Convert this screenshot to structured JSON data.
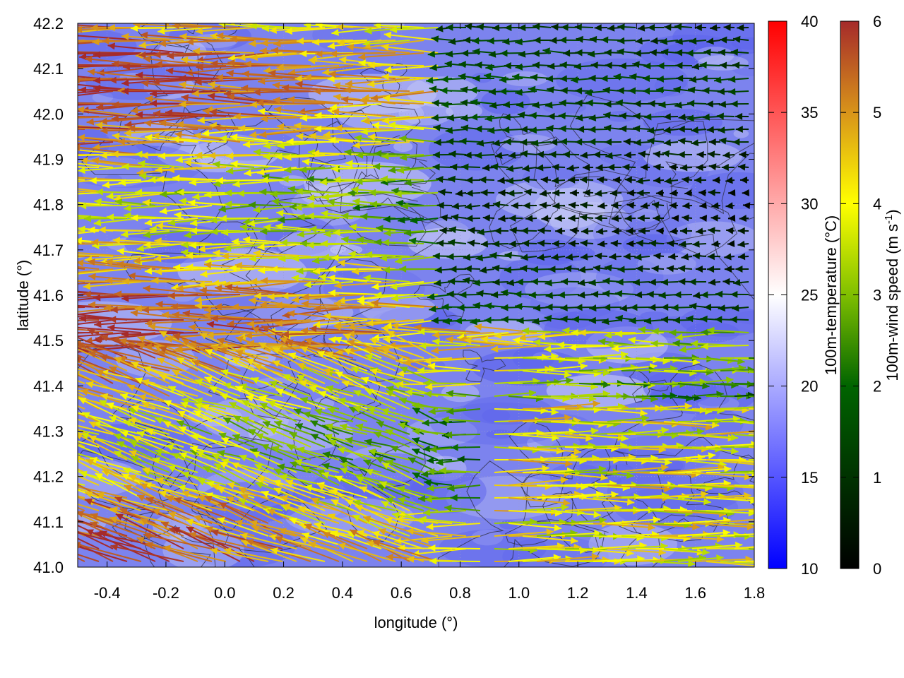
{
  "chart_data": {
    "type": "vector-field",
    "xlabel": "longitude (°)",
    "ylabel": "latitude (°)",
    "xlim": [
      -0.5,
      1.8
    ],
    "ylim": [
      41.0,
      42.2
    ],
    "x_ticks": [
      "-0.4",
      "-0.2",
      "0.0",
      "0.2",
      "0.4",
      "0.6",
      "0.8",
      "1.0",
      "1.2",
      "1.4",
      "1.6",
      "1.8"
    ],
    "y_ticks": [
      "41.0",
      "41.1",
      "41.2",
      "41.3",
      "41.4",
      "41.5",
      "41.6",
      "41.7",
      "41.8",
      "41.9",
      "42.0",
      "42.1",
      "42.2"
    ],
    "background_field": {
      "label": "100m-temperature (°C)",
      "range": [
        10,
        40
      ],
      "ticks": [
        "10",
        "15",
        "20",
        "25",
        "30",
        "35",
        "40"
      ],
      "colors": [
        "#0000ff",
        "#ffffff",
        "#ff0000"
      ]
    },
    "vector_field": {
      "label": "100m-wind speed (m s-1)",
      "range": [
        0,
        6
      ],
      "ticks": [
        "0",
        "1",
        "2",
        "3",
        "4",
        "5",
        "6"
      ],
      "colors": [
        "#000000",
        "#006400",
        "#7fbf00",
        "#ffff00",
        "#d8941a",
        "#a52a2a"
      ]
    },
    "contours": true,
    "grid": true
  }
}
